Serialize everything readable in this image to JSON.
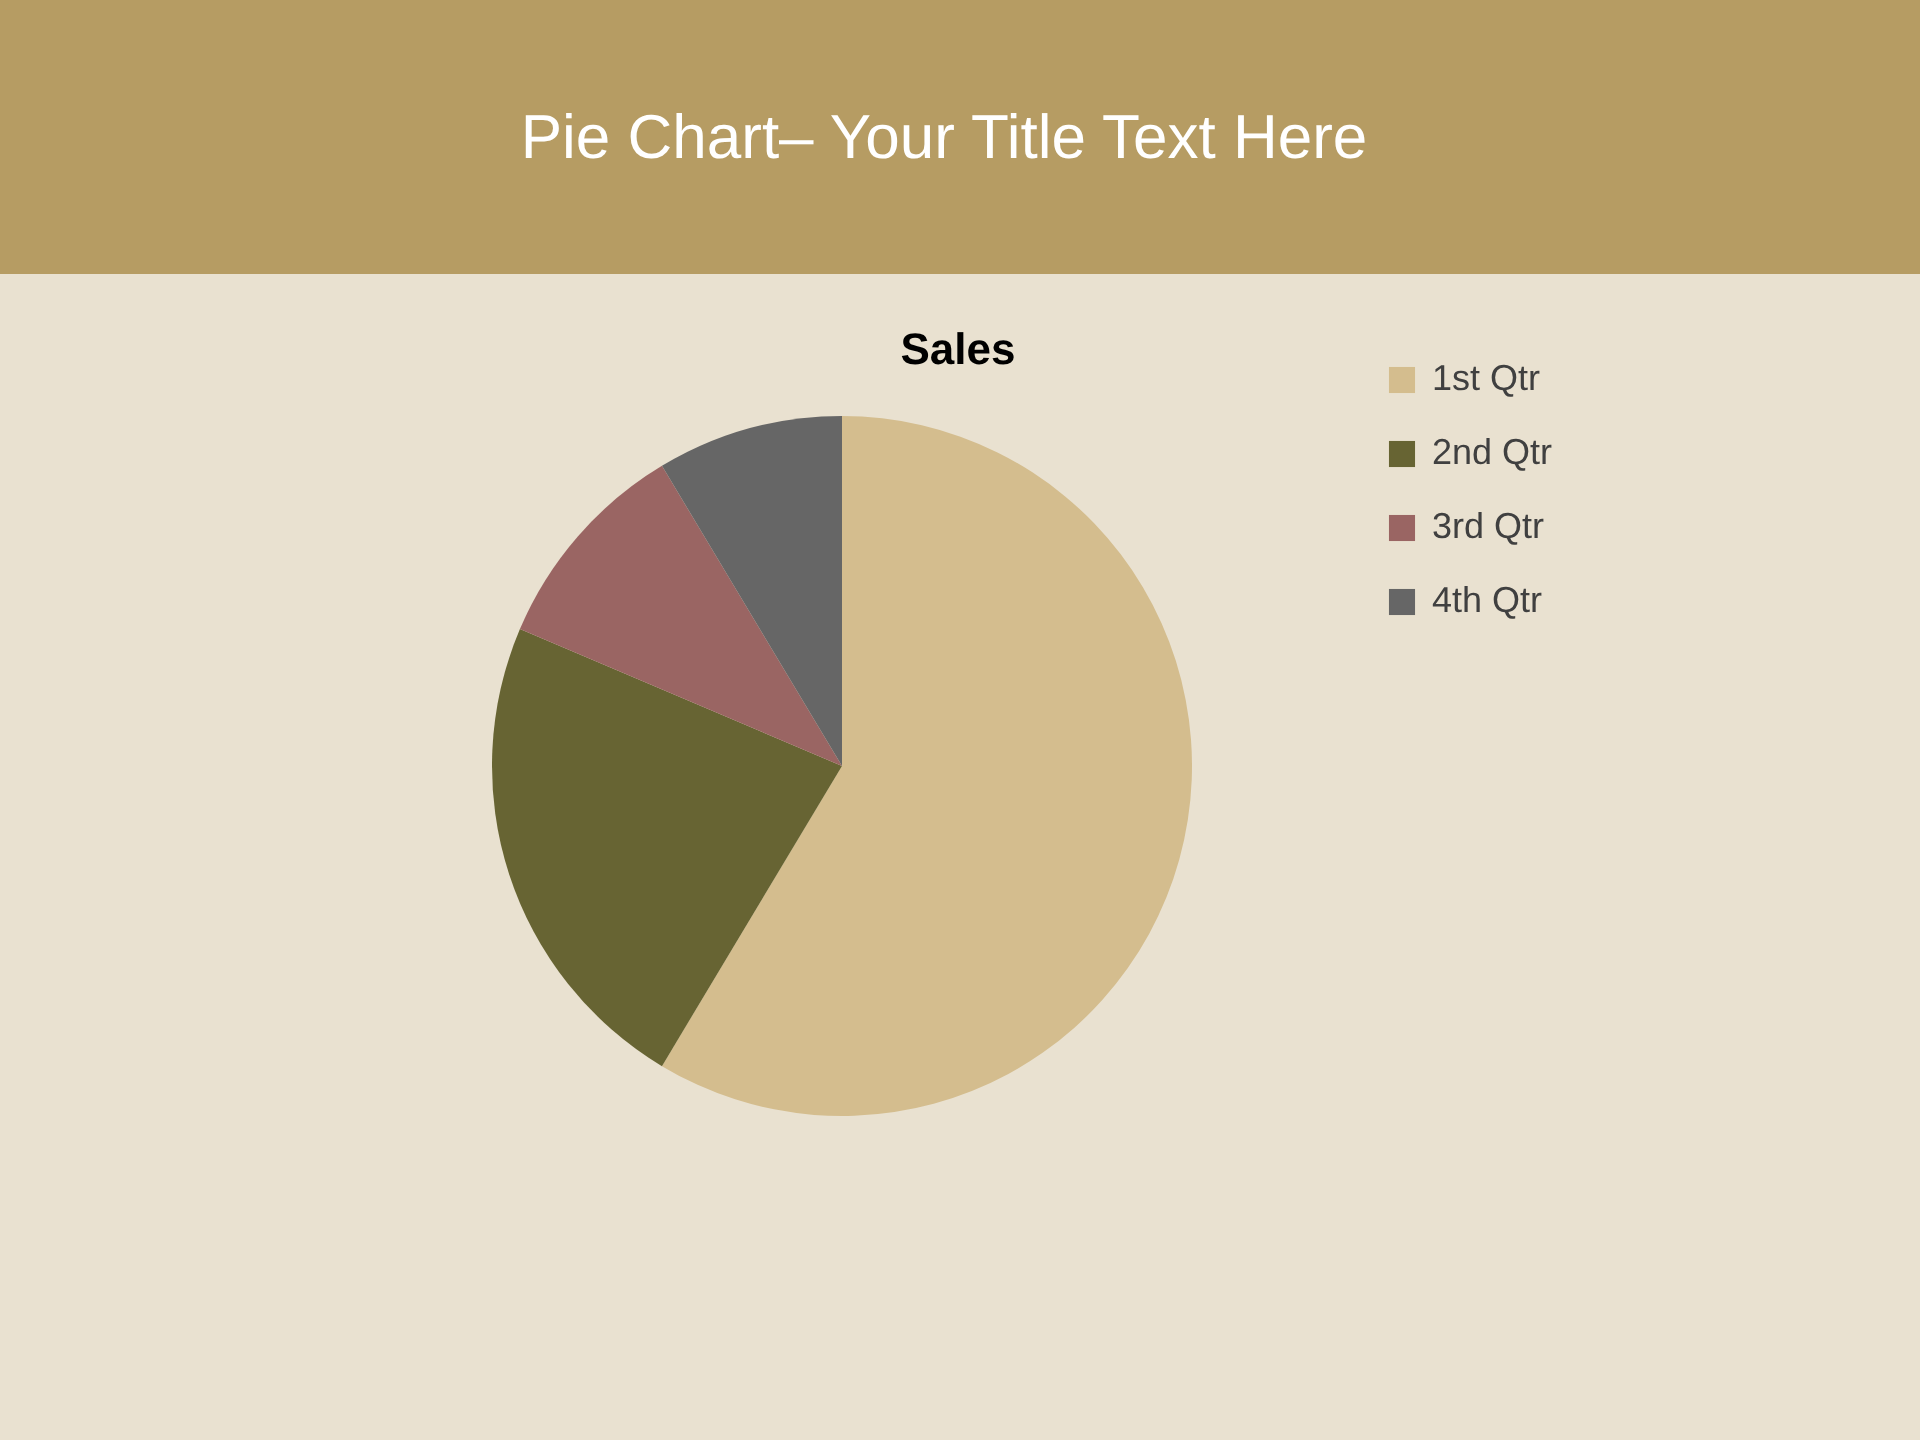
{
  "chart_data": {
    "type": "pie",
    "title": "Pie Chart– Your Title Text Here",
    "subtitle": "Sales",
    "categories": [
      "1st Qtr",
      "2nd Qtr",
      "3rd Qtr",
      "4th Qtr"
    ],
    "values": [
      58.6,
      22.8,
      10.0,
      8.6
    ],
    "colors": [
      "#d4bd8e",
      "#676433",
      "#9a6563",
      "#666666"
    ],
    "legend": "right"
  }
}
